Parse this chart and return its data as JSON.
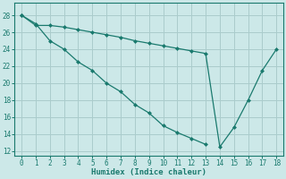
{
  "line1_x": [
    0,
    1,
    2,
    3,
    4,
    5,
    6,
    7,
    8,
    9,
    10,
    11,
    12,
    13
  ],
  "line1_y": [
    28.0,
    27.0,
    25.0,
    24.0,
    22.5,
    21.5,
    20.0,
    19.0,
    17.5,
    16.5,
    15.0,
    14.2,
    13.5,
    12.8
  ],
  "line2_x": [
    0,
    1,
    2,
    3,
    4,
    5,
    6,
    7,
    8,
    9,
    10,
    11,
    12,
    13,
    14,
    15,
    16,
    17,
    18
  ],
  "line2_y": [
    28.0,
    26.8,
    26.8,
    26.6,
    26.3,
    26.0,
    25.7,
    25.4,
    25.0,
    24.7,
    24.4,
    24.1,
    23.8,
    23.5,
    12.5,
    14.8,
    18.0,
    21.5,
    24.0
  ],
  "bg_color": "#cce8e8",
  "grid_color": "#aacccc",
  "line_color": "#1a7a6e",
  "xlabel": "Humidex (Indice chaleur)",
  "xlim": [
    -0.5,
    18.5
  ],
  "ylim": [
    11.5,
    29.5
  ],
  "yticks": [
    12,
    14,
    16,
    18,
    20,
    22,
    24,
    26,
    28
  ],
  "xticks": [
    0,
    1,
    2,
    3,
    4,
    5,
    6,
    7,
    8,
    9,
    10,
    11,
    12,
    13,
    14,
    15,
    16,
    17,
    18
  ]
}
